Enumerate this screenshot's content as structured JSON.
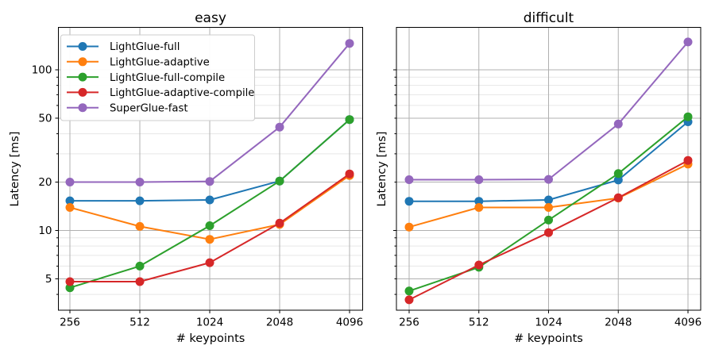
{
  "figure": {
    "background": "#ffffff",
    "grid_major_color": "#b0b0b0",
    "grid_minor_color": "#e7e7e7",
    "axis_color": "#000000"
  },
  "chart_data": [
    {
      "type": "line",
      "title": "easy",
      "xlabel": "# keypoints",
      "ylabel": "Latency [ms]",
      "xscale": "log2-categorical",
      "yscale": "log",
      "grid": "both",
      "x": [
        256,
        512,
        1024,
        2048,
        4096
      ],
      "xtick_labels": [
        "256",
        "512",
        "1024",
        "2048",
        "4096"
      ],
      "ytick_labels": [
        5,
        10,
        20,
        50,
        100
      ],
      "show_ytick_label_text": true,
      "ylim": [
        3.2,
        180
      ],
      "legend": {
        "position": "upper left",
        "entries": [
          "LightGlue-full",
          "LightGlue-adaptive",
          "LightGlue-full-compile",
          "LightGlue-adaptive-compile",
          "SuperGlue-fast"
        ]
      },
      "series": [
        {
          "name": "LightGlue-full",
          "color": "#1f77b4",
          "values": [
            15.3,
            15.3,
            15.5,
            20.3,
            49
          ]
        },
        {
          "name": "LightGlue-adaptive",
          "color": "#ff7f0e",
          "values": [
            13.9,
            10.6,
            8.8,
            10.9,
            22.0
          ]
        },
        {
          "name": "LightGlue-full-compile",
          "color": "#2ca02c",
          "values": [
            4.4,
            6.0,
            10.7,
            20.3,
            49
          ]
        },
        {
          "name": "LightGlue-adaptive-compile",
          "color": "#d62728",
          "values": [
            4.8,
            4.8,
            6.3,
            11.1,
            22.5
          ]
        },
        {
          "name": "SuperGlue-fast",
          "color": "#9467bd",
          "values": [
            20.0,
            20.0,
            20.2,
            44,
            146
          ]
        }
      ]
    },
    {
      "type": "line",
      "title": "difficult",
      "xlabel": "# keypoints",
      "ylabel": "Latency [ms]",
      "xscale": "log2-categorical",
      "yscale": "log",
      "grid": "both",
      "x": [
        256,
        512,
        1024,
        2048,
        4096
      ],
      "xtick_labels": [
        "256",
        "512",
        "1024",
        "2048",
        "4096"
      ],
      "ytick_labels": [
        5,
        10,
        20,
        50,
        100
      ],
      "show_ytick_label_text": false,
      "ylim": [
        3.2,
        180
      ],
      "legend": null,
      "series": [
        {
          "name": "LightGlue-full",
          "color": "#1f77b4",
          "values": [
            15.2,
            15.2,
            15.5,
            20.6,
            47.5
          ]
        },
        {
          "name": "LightGlue-adaptive",
          "color": "#ff7f0e",
          "values": [
            10.5,
            13.9,
            13.9,
            15.9,
            25.9
          ]
        },
        {
          "name": "LightGlue-full-compile",
          "color": "#2ca02c",
          "values": [
            4.2,
            5.9,
            11.6,
            22.6,
            51
          ]
        },
        {
          "name": "LightGlue-adaptive-compile",
          "color": "#d62728",
          "values": [
            3.7,
            6.1,
            9.7,
            16.0,
            27.3
          ]
        },
        {
          "name": "SuperGlue-fast",
          "color": "#9467bd",
          "values": [
            20.7,
            20.7,
            20.8,
            46,
            149
          ]
        }
      ]
    }
  ]
}
